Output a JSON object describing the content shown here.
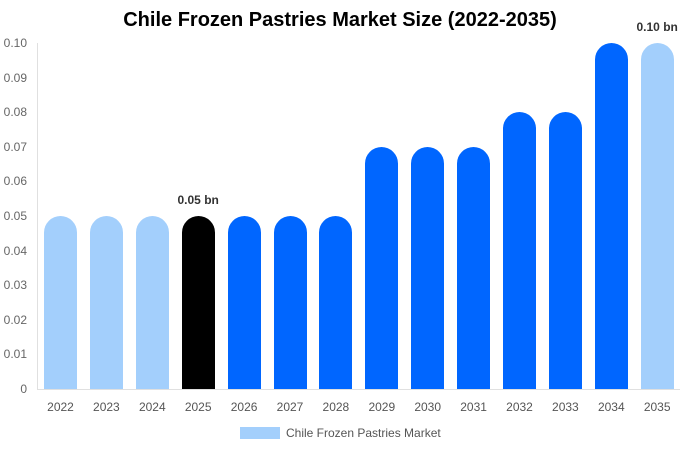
{
  "chart_data": {
    "type": "bar",
    "title": "Chile Frozen Pastries Market Size (2022-2035)",
    "xlabel": "",
    "ylabel": "",
    "ylim": [
      0,
      0.1
    ],
    "yticks": [
      "0",
      "0.01",
      "0.02",
      "0.03",
      "0.04",
      "0.05",
      "0.06",
      "0.07",
      "0.08",
      "0.09",
      "0.10"
    ],
    "categories": [
      "2022",
      "2023",
      "2024",
      "2025",
      "2026",
      "2027",
      "2028",
      "2029",
      "2030",
      "2031",
      "2032",
      "2033",
      "2034",
      "2035"
    ],
    "series": [
      {
        "name": "Chile Frozen Pastries Market",
        "values": [
          0.05,
          0.05,
          0.05,
          0.05,
          0.05,
          0.05,
          0.05,
          0.07,
          0.07,
          0.07,
          0.08,
          0.08,
          0.1,
          0.1
        ]
      }
    ],
    "bar_colors": [
      "#a3cffc",
      "#a3cffc",
      "#a3cffc",
      "#000000",
      "#0066ff",
      "#0066ff",
      "#0066ff",
      "#0066ff",
      "#0066ff",
      "#0066ff",
      "#0066ff",
      "#0066ff",
      "#0066ff",
      "#a3cffc"
    ],
    "annotations": [
      {
        "category": "2025",
        "text": "0.05 bn"
      },
      {
        "category": "2035",
        "text": "0.10 bn"
      }
    ],
    "grid": false,
    "legend_position": "bottom"
  },
  "legend": {
    "label": "Chile Frozen Pastries Market",
    "color": "#a3cffc"
  }
}
